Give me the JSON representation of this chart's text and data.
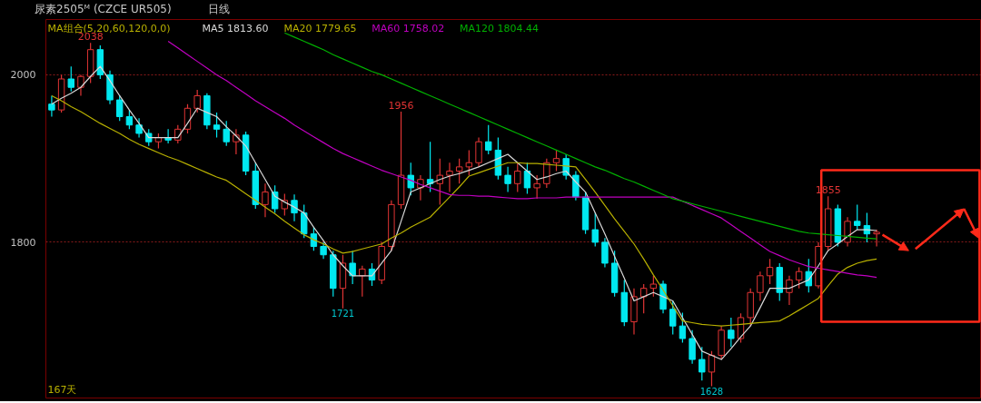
{
  "chart_data": {
    "type": "candlestick",
    "title": "尿素2505ᴹ (CZCE UR505)",
    "subtitle": "日线",
    "legend_title": "MA组合(5,20,60,120,0,0)",
    "categories": [
      null,
      null,
      null,
      null,
      null,
      null,
      null,
      null,
      null,
      null,
      null,
      null,
      null,
      null,
      null,
      null,
      null,
      null,
      null,
      null,
      null,
      null,
      null,
      null,
      null,
      null,
      null,
      null,
      null,
      null,
      null,
      null,
      null,
      null,
      null,
      null,
      null,
      null,
      null,
      null,
      null,
      null,
      null,
      null,
      null,
      null,
      null,
      null,
      null,
      null,
      null,
      null,
      null,
      null,
      null,
      null,
      null,
      null,
      null,
      null,
      null,
      null,
      null,
      null,
      null,
      null,
      null,
      null,
      null,
      null,
      null,
      null,
      null,
      null,
      null,
      null,
      null,
      null,
      null,
      null,
      null,
      null,
      null,
      null,
      null,
      null
    ],
    "ohlc": [
      [
        1965,
        1975,
        1950,
        1958
      ],
      [
        1958,
        2000,
        1955,
        1995
      ],
      [
        1995,
        2010,
        1980,
        1985
      ],
      [
        1985,
        2000,
        1975,
        1998
      ],
      [
        1998,
        2038,
        1990,
        2030
      ],
      [
        2030,
        2035,
        1995,
        2000
      ],
      [
        2000,
        2005,
        1965,
        1970
      ],
      [
        1970,
        1975,
        1945,
        1950
      ],
      [
        1950,
        1958,
        1935,
        1940
      ],
      [
        1940,
        1948,
        1925,
        1930
      ],
      [
        1930,
        1935,
        1915,
        1920
      ],
      [
        1920,
        1930,
        1912,
        1925
      ],
      [
        1925,
        1935,
        1918,
        1922
      ],
      [
        1922,
        1940,
        1918,
        1935
      ],
      [
        1935,
        1965,
        1930,
        1960
      ],
      [
        1960,
        1982,
        1955,
        1975
      ],
      [
        1975,
        1978,
        1935,
        1940
      ],
      [
        1940,
        1955,
        1925,
        1935
      ],
      [
        1935,
        1945,
        1915,
        1920
      ],
      [
        1920,
        1935,
        1905,
        1928
      ],
      [
        1928,
        1932,
        1880,
        1885
      ],
      [
        1885,
        1895,
        1840,
        1845
      ],
      [
        1845,
        1870,
        1830,
        1860
      ],
      [
        1860,
        1868,
        1835,
        1840
      ],
      [
        1840,
        1858,
        1832,
        1850
      ],
      [
        1850,
        1857,
        1825,
        1835
      ],
      [
        1835,
        1845,
        1805,
        1810
      ],
      [
        1810,
        1818,
        1790,
        1795
      ],
      [
        1795,
        1800,
        1780,
        1785
      ],
      [
        1785,
        1790,
        1735,
        1745
      ],
      [
        1745,
        1785,
        1721,
        1775
      ],
      [
        1775,
        1790,
        1750,
        1760
      ],
      [
        1760,
        1772,
        1735,
        1768
      ],
      [
        1768,
        1775,
        1748,
        1755
      ],
      [
        1755,
        1800,
        1750,
        1795
      ],
      [
        1795,
        1850,
        1790,
        1845
      ],
      [
        1845,
        1956,
        1840,
        1880
      ],
      [
        1880,
        1895,
        1856,
        1865
      ],
      [
        1865,
        1880,
        1850,
        1875
      ],
      [
        1875,
        1920,
        1860,
        1870
      ],
      [
        1870,
        1900,
        1845,
        1880
      ],
      [
        1880,
        1895,
        1860,
        1885
      ],
      [
        1885,
        1900,
        1870,
        1890
      ],
      [
        1890,
        1910,
        1880,
        1895
      ],
      [
        1895,
        1925,
        1890,
        1920
      ],
      [
        1920,
        1940,
        1905,
        1910
      ],
      [
        1910,
        1925,
        1875,
        1880
      ],
      [
        1880,
        1890,
        1860,
        1870
      ],
      [
        1870,
        1895,
        1860,
        1885
      ],
      [
        1885,
        1895,
        1858,
        1865
      ],
      [
        1865,
        1880,
        1852,
        1870
      ],
      [
        1870,
        1900,
        1865,
        1895
      ],
      [
        1895,
        1910,
        1885,
        1900
      ],
      [
        1900,
        1905,
        1875,
        1880
      ],
      [
        1880,
        1885,
        1850,
        1854
      ],
      [
        1854,
        1860,
        1810,
        1815
      ],
      [
        1815,
        1835,
        1795,
        1800
      ],
      [
        1800,
        1805,
        1770,
        1775
      ],
      [
        1775,
        1790,
        1735,
        1740
      ],
      [
        1740,
        1755,
        1700,
        1705
      ],
      [
        1705,
        1745,
        1690,
        1735
      ],
      [
        1735,
        1750,
        1715,
        1745
      ],
      [
        1745,
        1760,
        1735,
        1750
      ],
      [
        1750,
        1754,
        1715,
        1720
      ],
      [
        1720,
        1730,
        1690,
        1700
      ],
      [
        1700,
        1716,
        1680,
        1685
      ],
      [
        1685,
        1695,
        1655,
        1660
      ],
      [
        1660,
        1675,
        1635,
        1645
      ],
      [
        1645,
        1670,
        1628,
        1665
      ],
      [
        1665,
        1700,
        1660,
        1695
      ],
      [
        1695,
        1710,
        1675,
        1685
      ],
      [
        1685,
        1715,
        1680,
        1710
      ],
      [
        1710,
        1745,
        1700,
        1740
      ],
      [
        1740,
        1765,
        1730,
        1760
      ],
      [
        1760,
        1780,
        1750,
        1770
      ],
      [
        1770,
        1775,
        1730,
        1740
      ],
      [
        1740,
        1760,
        1725,
        1755
      ],
      [
        1755,
        1770,
        1745,
        1765
      ],
      [
        1765,
        1780,
        1740,
        1748
      ],
      [
        1748,
        1800,
        1745,
        1795
      ],
      [
        1795,
        1855,
        1790,
        1840
      ],
      [
        1840,
        1845,
        1795,
        1800
      ],
      [
        1800,
        1830,
        1795,
        1825
      ],
      [
        1825,
        1845,
        1815,
        1820
      ],
      [
        1820,
        1835,
        1800,
        1810
      ],
      [
        1810,
        1815,
        1795,
        1812
      ]
    ],
    "colors": [
      "#00e8f0",
      "#e03434",
      "#00e8f0",
      "#e03434",
      "#e03434",
      "#00e8f0",
      "#00e8f0",
      "#00e8f0",
      "#00e8f0",
      "#00e8f0",
      "#00e8f0",
      "#e03434",
      "#00e8f0",
      "#e03434",
      "#e03434",
      "#e03434",
      "#00e8f0",
      "#00e8f0",
      "#00e8f0",
      "#e03434",
      "#00e8f0",
      "#00e8f0",
      "#e03434",
      "#00e8f0",
      "#e03434",
      "#00e8f0",
      "#00e8f0",
      "#00e8f0",
      "#00e8f0",
      "#00e8f0",
      "#e03434",
      "#00e8f0",
      "#e03434",
      "#00e8f0",
      "#e03434",
      "#e03434",
      "#e03434",
      "#00e8f0",
      "#e03434",
      "#00e8f0",
      "#e03434",
      "#e03434",
      "#e03434",
      "#e03434",
      "#e03434",
      "#00e8f0",
      "#00e8f0",
      "#00e8f0",
      "#e03434",
      "#00e8f0",
      "#e03434",
      "#e03434",
      "#e03434",
      "#00e8f0",
      "#00e8f0",
      "#00e8f0",
      "#00e8f0",
      "#00e8f0",
      "#00e8f0",
      "#00e8f0",
      "#e03434",
      "#e03434",
      "#e03434",
      "#00e8f0",
      "#00e8f0",
      "#00e8f0",
      "#00e8f0",
      "#00e8f0",
      "#e03434",
      "#e03434",
      "#00e8f0",
      "#e03434",
      "#e03434",
      "#e03434",
      "#e03434",
      "#00e8f0",
      "#e03434",
      "#e03434",
      "#00e8f0",
      "#e03434",
      "#e03434",
      "#00e8f0",
      "#e03434",
      "#00e8f0",
      "#00e8f0",
      "#e03434"
    ],
    "series": [
      {
        "name": "MA5 1813.60",
        "type": "line",
        "color": "#d8d8d8",
        "values": [
          1965,
          1972,
          1978,
          1985,
          1998,
          2010,
          1993,
          1975,
          1958,
          1942,
          1925,
          1925,
          1925,
          1925,
          1942,
          1960,
          1955,
          1950,
          1938,
          1927,
          1915,
          1895,
          1875,
          1855,
          1848,
          1842,
          1835,
          1818,
          1802,
          1785,
          1772,
          1760,
          1760,
          1760,
          1775,
          1790,
          1825,
          1860,
          1865,
          1870,
          1875,
          1879,
          1882,
          1886,
          1890,
          1895,
          1900,
          1905,
          1895,
          1885,
          1875,
          1878,
          1882,
          1885,
          1872,
          1860,
          1835,
          1810,
          1783,
          1757,
          1730,
          1735,
          1740,
          1735,
          1730,
          1710,
          1690,
          1670,
          1665,
          1660,
          1673,
          1687,
          1700,
          1722,
          1745,
          1745,
          1745,
          1750,
          1755,
          1772,
          1790,
          1798,
          1807,
          1815,
          1815,
          1814
        ]
      },
      {
        "name": "MA20 1779.65",
        "type": "line",
        "color": "#b8b000",
        "values": [
          1975,
          1969,
          1962,
          1956,
          1949,
          1942,
          1936,
          1930,
          1923,
          1917,
          1912,
          1907,
          1902,
          1898,
          1893,
          1888,
          1883,
          1878,
          1874,
          1866,
          1858,
          1850,
          1842,
          1834,
          1825,
          1817,
          1809,
          1803,
          1798,
          1792,
          1787,
          1789,
          1792,
          1795,
          1798,
          1805,
          1811,
          1818,
          1824,
          1830,
          1842,
          1854,
          1866,
          1879,
          1883,
          1887,
          1891,
          1895,
          1895,
          1894,
          1894,
          1893,
          1892,
          1891,
          1890,
          1875,
          1860,
          1844,
          1828,
          1813,
          1798,
          1780,
          1761,
          1743,
          1724,
          1706,
          1704,
          1702,
          1701,
          1700,
          1701,
          1702,
          1703,
          1704,
          1705,
          1706,
          1712,
          1719,
          1726,
          1733,
          1748,
          1762,
          1770,
          1775,
          1778,
          1780
        ]
      },
      {
        "name": "MA60 1758.02",
        "type": "line",
        "color": "#c000c0",
        "values": [
          null,
          null,
          null,
          null,
          null,
          null,
          null,
          null,
          null,
          null,
          null,
          null,
          2040,
          2032,
          2024,
          2016,
          2008,
          2000,
          1993,
          1985,
          1977,
          1969,
          1962,
          1955,
          1948,
          1940,
          1933,
          1926,
          1919,
          1912,
          1906,
          1901,
          1896,
          1891,
          1886,
          1882,
          1878,
          1874,
          1869,
          1865,
          1861,
          1857,
          1856,
          1856,
          1855,
          1855,
          1854,
          1853,
          1852,
          1852,
          1853,
          1853,
          1853,
          1854,
          1854,
          1854,
          1854,
          1854,
          1854,
          1854,
          1854,
          1854,
          1854,
          1854,
          1854,
          1849,
          1844,
          1839,
          1834,
          1829,
          1821,
          1813,
          1805,
          1797,
          1789,
          1784,
          1779,
          1775,
          1771,
          1769,
          1767,
          1765,
          1763,
          1761,
          1760,
          1758
        ]
      },
      {
        "name": "MA120 1804.44",
        "type": "line",
        "color": "#00b000",
        "values": [
          null,
          null,
          null,
          null,
          null,
          null,
          null,
          null,
          null,
          null,
          null,
          null,
          null,
          null,
          null,
          null,
          null,
          null,
          null,
          null,
          null,
          null,
          null,
          null,
          2050,
          2045,
          2040,
          2035,
          2030,
          2024,
          2019,
          2014,
          2009,
          2004,
          2000,
          1995,
          1990,
          1985,
          1980,
          1975,
          1970,
          1965,
          1960,
          1955,
          1950,
          1945,
          1940,
          1935,
          1930,
          1925,
          1920,
          1915,
          1910,
          1905,
          1900,
          1895,
          1890,
          1886,
          1881,
          1876,
          1872,
          1867,
          1862,
          1857,
          1852,
          1849,
          1846,
          1843,
          1840,
          1837,
          1834,
          1831,
          1828,
          1825,
          1822,
          1819,
          1816,
          1813,
          1811,
          1810,
          1809,
          1808,
          1807,
          1806,
          1805,
          1804
        ]
      }
    ],
    "ylim": [
      1614,
      2066
    ],
    "yticks": [
      1800,
      2000
    ],
    "grid": "y",
    "tick_labels": "y",
    "legend": "top left",
    "annotations": [
      {
        "text": "2038",
        "y": 2038
      },
      {
        "text": "1956",
        "y": 1956
      },
      {
        "text": "1721",
        "y": 1721
      },
      {
        "text": "1628",
        "y": 1628
      },
      {
        "text": "1855",
        "y": 1855
      },
      "167天"
    ]
  }
}
